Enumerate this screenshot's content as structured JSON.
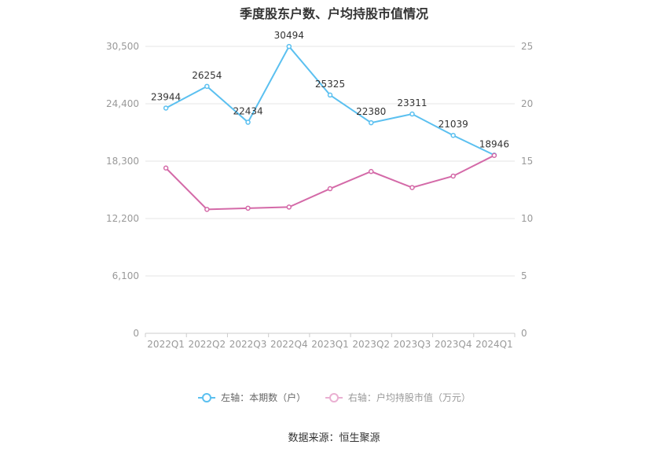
{
  "chart_data": {
    "type": "line",
    "title": "季度股东户数、户均持股市值情况",
    "categories": [
      "2022Q1",
      "2022Q2",
      "2022Q3",
      "2022Q4",
      "2023Q1",
      "2023Q2",
      "2023Q3",
      "2023Q4",
      "2024Q1"
    ],
    "left_axis": {
      "min": 0,
      "max": 30500,
      "ticks": [
        "0",
        "6,100",
        "12,200",
        "18,300",
        "24,400",
        "30,500"
      ],
      "tick_values": [
        0,
        6100,
        12200,
        18300,
        24400,
        30500
      ]
    },
    "right_axis": {
      "min": 0,
      "max": 25,
      "ticks": [
        "0",
        "5",
        "10",
        "15",
        "20",
        "25"
      ],
      "tick_values": [
        0,
        5,
        10,
        15,
        20,
        25
      ]
    },
    "series": [
      {
        "name": "左轴：本期数（户）",
        "axis": "left",
        "color": "#5bc0f0",
        "values": [
          23944,
          26254,
          22434,
          30494,
          25325,
          22380,
          23311,
          21039,
          18946
        ],
        "labels": [
          "23944",
          "26254",
          "22434",
          "30494",
          "25325",
          "22380",
          "23311",
          "21039",
          "18946"
        ]
      },
      {
        "name": "右轴：户均持股市值（万元）",
        "axis": "right",
        "color": "#d46aa8",
        "values": [
          14.4,
          10.8,
          10.9,
          11.0,
          12.6,
          14.1,
          12.7,
          13.7,
          15.5
        ]
      }
    ],
    "grid": true,
    "legend_position": "bottom"
  },
  "footer": {
    "source": "数据来源：恒生聚源"
  }
}
